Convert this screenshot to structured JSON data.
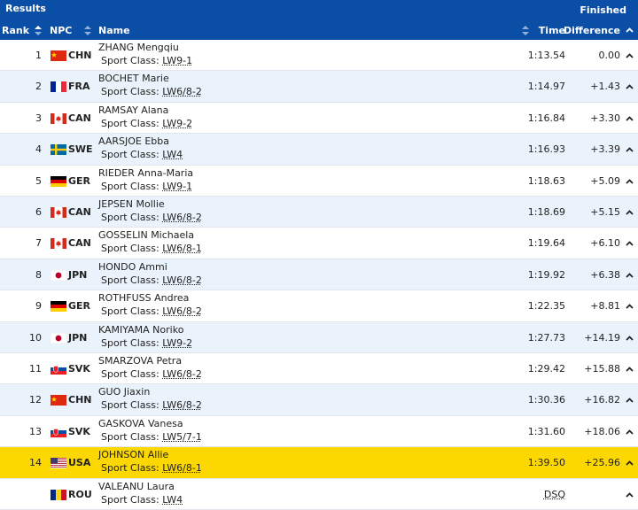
{
  "header": {
    "title": "Results",
    "status": "Finished"
  },
  "columns": {
    "rank": "Rank",
    "npc": "NPC",
    "name": "Name",
    "time": "Time",
    "difference": "Difference"
  },
  "sport_class_label": "Sport Class:",
  "rows": [
    {
      "rank": "1",
      "npc": "CHN",
      "name": "ZHANG Mengqiu",
      "sport_class": "LW9-1",
      "time": "1:13.54",
      "difference": "0.00"
    },
    {
      "rank": "2",
      "npc": "FRA",
      "name": "BOCHET Marie",
      "sport_class": "LW6/8-2",
      "time": "1:14.97",
      "difference": "+1.43"
    },
    {
      "rank": "3",
      "npc": "CAN",
      "name": "RAMSAY Alana",
      "sport_class": "LW9-2",
      "time": "1:16.84",
      "difference": "+3.30"
    },
    {
      "rank": "4",
      "npc": "SWE",
      "name": "AARSJOE Ebba",
      "sport_class": "LW4",
      "time": "1:16.93",
      "difference": "+3.39"
    },
    {
      "rank": "5",
      "npc": "GER",
      "name": "RIEDER Anna-Maria",
      "sport_class": "LW9-1",
      "time": "1:18.63",
      "difference": "+5.09"
    },
    {
      "rank": "6",
      "npc": "CAN",
      "name": "JEPSEN Mollie",
      "sport_class": "LW6/8-2",
      "time": "1:18.69",
      "difference": "+5.15"
    },
    {
      "rank": "7",
      "npc": "CAN",
      "name": "GOSSELIN Michaela",
      "sport_class": "LW6/8-1",
      "time": "1:19.64",
      "difference": "+6.10"
    },
    {
      "rank": "8",
      "npc": "JPN",
      "name": "HONDO Ammi",
      "sport_class": "LW6/8-2",
      "time": "1:19.92",
      "difference": "+6.38"
    },
    {
      "rank": "9",
      "npc": "GER",
      "name": "ROTHFUSS Andrea",
      "sport_class": "LW6/8-2",
      "time": "1:22.35",
      "difference": "+8.81"
    },
    {
      "rank": "10",
      "npc": "JPN",
      "name": "KAMIYAMA Noriko",
      "sport_class": "LW9-2",
      "time": "1:27.73",
      "difference": "+14.19"
    },
    {
      "rank": "11",
      "npc": "SVK",
      "name": "SMARZOVA Petra",
      "sport_class": "LW6/8-2",
      "time": "1:29.42",
      "difference": "+15.88"
    },
    {
      "rank": "12",
      "npc": "CHN",
      "name": "GUO Jiaxin",
      "sport_class": "LW6/8-2",
      "time": "1:30.36",
      "difference": "+16.82"
    },
    {
      "rank": "13",
      "npc": "SVK",
      "name": "GASKOVA Vanesa",
      "sport_class": "LW5/7-1",
      "time": "1:31.60",
      "difference": "+18.06"
    },
    {
      "rank": "14",
      "npc": "USA",
      "name": "JOHNSON Allie",
      "sport_class": "LW6/8-1",
      "time": "1:39.50",
      "difference": "+25.96"
    },
    {
      "npc": "ROU",
      "name": "VALEANU Laura",
      "sport_class": "LW4",
      "time": "DSQ"
    }
  ]
}
